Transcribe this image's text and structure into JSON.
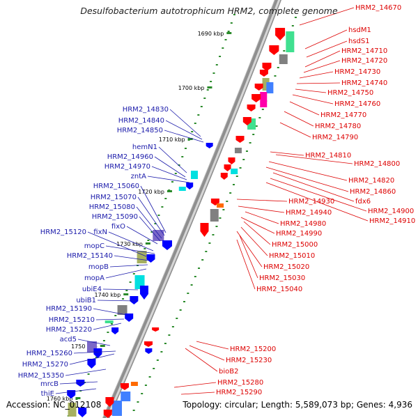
{
  "title": "Desulfobacterium autotrophicum HRM2, complete genome",
  "footer": {
    "accession": "Accession: NC_012108",
    "topology": "Topology: circular; Length: 5,589,073 bp; Genes: 4,936"
  },
  "kbp_ticks": [
    "1690 kbp",
    "1700 kbp",
    "1710 kbp",
    "1720 kbp",
    "1730 kbp",
    "1740 kbp",
    "1750 kbp",
    "1760 kbp"
  ],
  "right_labels": [
    "HRM2_14670",
    "hsdM1",
    "hsdS1",
    "HRM2_14710",
    "HRM2_14720",
    "HRM2_14730",
    "HRM2_14740",
    "HRM2_14750",
    "HRM2_14760",
    "HRM2_14770",
    "HRM2_14780",
    "HRM2_14790",
    "HRM2_14810",
    "HRM2_14800",
    "HRM2_14820",
    "HRM2_14860",
    "fdx6",
    "HRM2_14900",
    "HRM2_14910",
    "HRM2_14930",
    "HRM2_14940",
    "HRM2_14980",
    "HRM2_14990",
    "HRM2_15000",
    "HRM2_15010",
    "HRM2_15020",
    "HRM2_15030",
    "HRM2_15040",
    "HRM2_15200",
    "HRM2_15230",
    "bioB2",
    "HRM2_15280",
    "HRM2_15290"
  ],
  "left_labels": [
    "HRM2_14830",
    "HRM2_14840",
    "HRM2_14850",
    "hemN1",
    "HRM2_14960",
    "HRM2_14970",
    "zntA",
    "HRM2_15060",
    "HRM2_15070",
    "HRM2_15080",
    "HRM2_15090",
    "fixO",
    "HRM2_15120",
    "fixN",
    "mopC",
    "HRM2_15140",
    "mopB",
    "mopA",
    "ubiE4",
    "ubiB1",
    "HRM2_15190",
    "HRM2_15210",
    "HRM2_15220",
    "acd5",
    "HRM2_15260",
    "HRM2_15270",
    "HRM2_15350",
    "mrcB",
    "thiE"
  ],
  "colors": {
    "right_label": "#dd0000",
    "left_label": "#1a1aaa",
    "backbone": "#999999",
    "tick": "#2a8a2a"
  }
}
